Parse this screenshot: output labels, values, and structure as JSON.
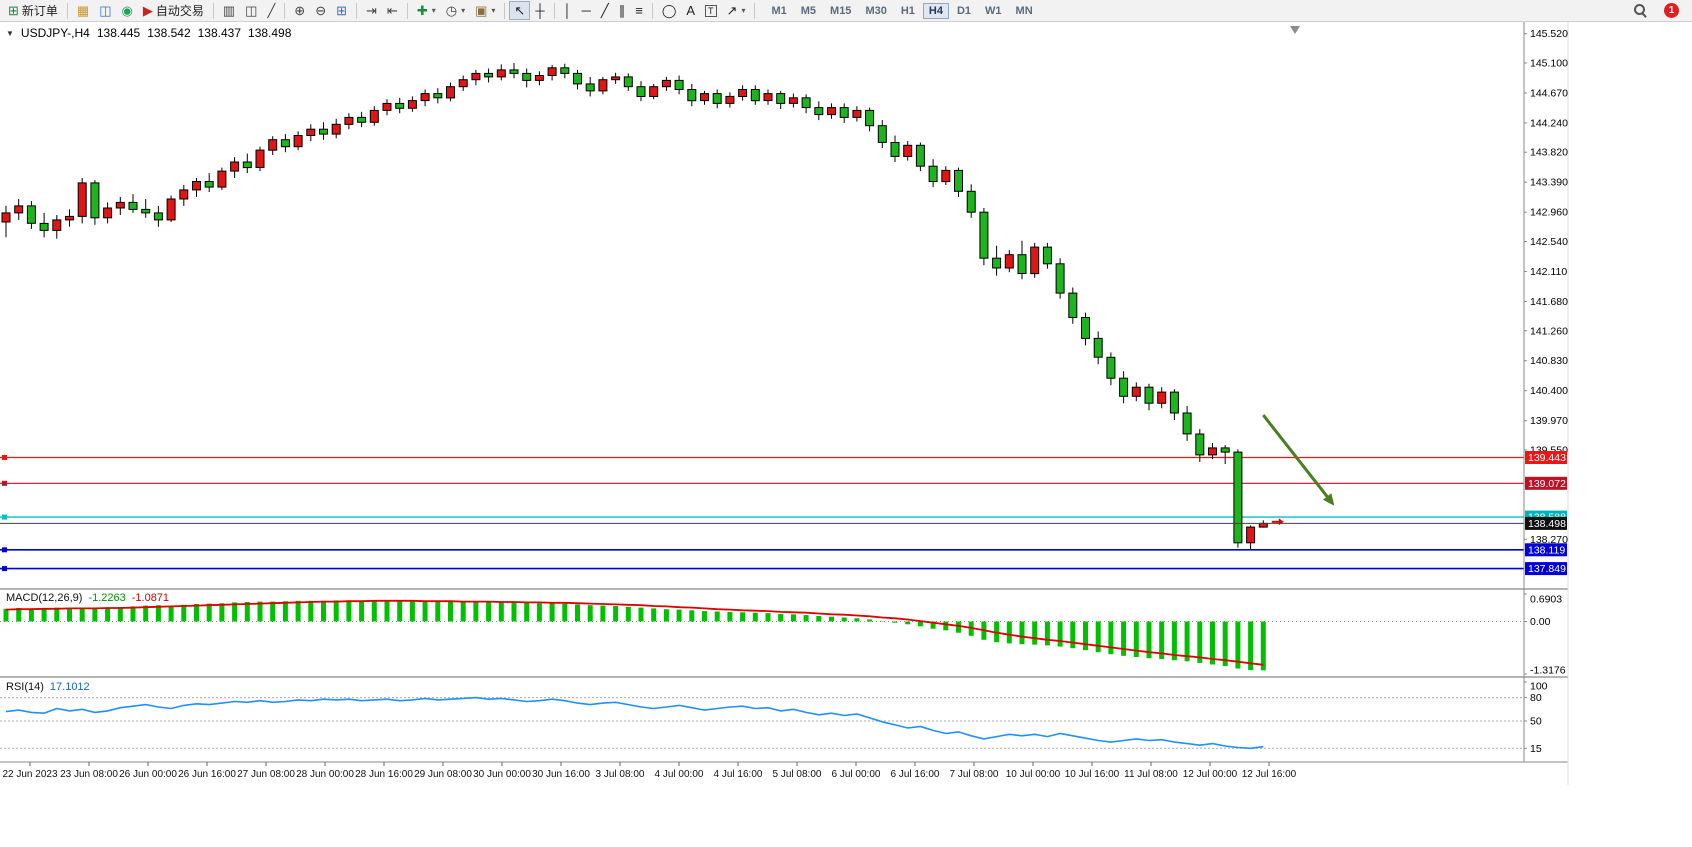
{
  "toolbar": {
    "items": [
      {
        "name": "new-order-button",
        "glyph": "⊞",
        "color": "#1d8a3c",
        "label": "新订单"
      },
      {
        "sep": true
      },
      {
        "name": "new-chart-button",
        "glyph": "▦",
        "color": "#c8962e"
      },
      {
        "name": "profiles-button",
        "glyph": "◫",
        "color": "#3b6fc4"
      },
      {
        "name": "community-button",
        "glyph": "◉",
        "color": "#18a558"
      },
      {
        "name": "autotrading-button",
        "glyph": "▶",
        "color": "#cc2222",
        "label": "自动交易"
      },
      {
        "sep": true
      },
      {
        "name": "bars-chart-button",
        "glyph": "▥",
        "color": "#444"
      },
      {
        "name": "candlestick-chart-button",
        "glyph": "◫",
        "color": "#444"
      },
      {
        "name": "line-chart-button",
        "glyph": "╱",
        "color": "#444"
      },
      {
        "sep": true
      },
      {
        "name": "zoom-in-button",
        "glyph": "⊕",
        "color": "#444"
      },
      {
        "name": "zoom-out-button",
        "glyph": "⊖",
        "color": "#444"
      },
      {
        "name": "tile-windows-button",
        "glyph": "⊞",
        "color": "#3b6fc4"
      },
      {
        "sep": true
      },
      {
        "name": "auto-scroll-button",
        "glyph": "⇥",
        "color": "#444"
      },
      {
        "name": "chart-shift-button",
        "glyph": "⇤",
        "color": "#444"
      },
      {
        "sep": true
      },
      {
        "name": "indicators-button",
        "glyph": "✚",
        "color": "#1d8a3c",
        "caret": true
      },
      {
        "name": "periods-button",
        "glyph": "◷",
        "color": "#444",
        "caret": true
      },
      {
        "name": "templates-button",
        "glyph": "▣",
        "color": "#8a6d3b",
        "caret": true
      },
      {
        "sep": true
      },
      {
        "name": "cursor-button",
        "glyph": "↖",
        "color": "#222",
        "pressed": true
      },
      {
        "name": "crosshair-button",
        "glyph": "┼",
        "color": "#222"
      },
      {
        "sep": true
      },
      {
        "name": "vertical-line-button",
        "glyph": "│",
        "color": "#222"
      },
      {
        "name": "horizontal-line-button",
        "glyph": "─",
        "color": "#222"
      },
      {
        "name": "trendline-button",
        "glyph": "╱",
        "color": "#222"
      },
      {
        "name": "channel-button",
        "glyph": "∥",
        "color": "#222"
      },
      {
        "name": "fibonacci-button",
        "glyph": "≡",
        "color": "#222"
      },
      {
        "sep": true
      },
      {
        "name": "shapes-button",
        "glyph": "◯",
        "color": "#222"
      },
      {
        "name": "text-button",
        "glyph": "A",
        "color": "#222"
      },
      {
        "name": "text-label-button",
        "glyph": "T",
        "color": "#222",
        "boxed": true
      },
      {
        "name": "arrows-button",
        "glyph": "↗",
        "color": "#222",
        "caret": true
      },
      {
        "sep": true
      }
    ],
    "timeframes": [
      "M1",
      "M5",
      "M15",
      "M30",
      "H1",
      "H4",
      "D1",
      "W1",
      "MN"
    ],
    "active_timeframe": "H4",
    "notification_count": "1"
  },
  "header": {
    "collapse_glyph": "▼",
    "title": "USDJPY-,H4",
    "open": "138.445",
    "high": "138.542",
    "low": "138.437",
    "close": "138.498"
  },
  "macd_panel": {
    "label": "MACD(12,26,9)",
    "main_value": "-1.2263",
    "signal_value": "-1.0871"
  },
  "rsi_panel": {
    "label": "RSI(14)",
    "value": "17.1012"
  },
  "chart_data": {
    "type": "candlestick",
    "symbol": "USDJPY-",
    "timeframe": "H4",
    "ylim": [
      137.6,
      145.63
    ],
    "price_ticks": [
      "145.520",
      "145.100",
      "144.670",
      "144.240",
      "143.820",
      "143.390",
      "142.960",
      "142.540",
      "142.110",
      "141.680",
      "141.260",
      "140.830",
      "140.400",
      "139.970",
      "139.550",
      "138.270"
    ],
    "date_labels": [
      "22 Jun 2023",
      "23 Jun 08:00",
      "26 Jun 00:00",
      "26 Jun 16:00",
      "27 Jun 08:00",
      "28 Jun 00:00",
      "28 Jun 16:00",
      "29 Jun 08:00",
      "30 Jun 00:00",
      "30 Jun 16:00",
      "3 Jul 08:00",
      "4 Jul 00:00",
      "4 Jul 16:00",
      "5 Jul 08:00",
      "6 Jul 00:00",
      "6 Jul 16:00",
      "7 Jul 08:00",
      "10 Jul 00:00",
      "10 Jul 16:00",
      "11 Jul 08:00",
      "12 Jul 00:00",
      "12 Jul 16:00"
    ],
    "ohlc": [
      [
        142.82,
        143.05,
        142.6,
        142.95
      ],
      [
        142.95,
        143.15,
        142.85,
        143.05
      ],
      [
        143.05,
        143.12,
        142.72,
        142.8
      ],
      [
        142.8,
        142.95,
        142.6,
        142.7
      ],
      [
        142.7,
        142.92,
        142.58,
        142.85
      ],
      [
        142.85,
        143.0,
        142.75,
        142.9
      ],
      [
        142.9,
        143.45,
        142.8,
        143.38
      ],
      [
        143.38,
        143.42,
        142.78,
        142.88
      ],
      [
        142.88,
        143.1,
        142.8,
        143.02
      ],
      [
        143.02,
        143.18,
        142.92,
        143.1
      ],
      [
        143.1,
        143.22,
        142.95,
        143.0
      ],
      [
        143.0,
        143.15,
        142.88,
        142.95
      ],
      [
        142.95,
        143.05,
        142.75,
        142.85
      ],
      [
        142.85,
        143.2,
        142.82,
        143.15
      ],
      [
        143.15,
        143.35,
        143.05,
        143.28
      ],
      [
        143.28,
        143.45,
        143.18,
        143.4
      ],
      [
        143.4,
        143.52,
        143.25,
        143.32
      ],
      [
        143.32,
        143.6,
        143.28,
        143.55
      ],
      [
        143.55,
        143.75,
        143.45,
        143.68
      ],
      [
        143.68,
        143.8,
        143.52,
        143.6
      ],
      [
        143.6,
        143.9,
        143.55,
        143.85
      ],
      [
        143.85,
        144.05,
        143.78,
        144.0
      ],
      [
        144.0,
        144.08,
        143.82,
        143.9
      ],
      [
        143.9,
        144.12,
        143.85,
        144.06
      ],
      [
        144.06,
        144.22,
        143.98,
        144.15
      ],
      [
        144.15,
        144.25,
        144.0,
        144.08
      ],
      [
        144.08,
        144.3,
        144.02,
        144.22
      ],
      [
        144.22,
        144.38,
        144.15,
        144.32
      ],
      [
        144.32,
        144.4,
        144.18,
        144.25
      ],
      [
        144.25,
        144.48,
        144.2,
        144.42
      ],
      [
        144.42,
        144.58,
        144.35,
        144.52
      ],
      [
        144.52,
        144.6,
        144.38,
        144.45
      ],
      [
        144.45,
        144.62,
        144.4,
        144.56
      ],
      [
        144.56,
        144.72,
        144.48,
        144.66
      ],
      [
        144.66,
        144.74,
        144.52,
        144.6
      ],
      [
        144.6,
        144.82,
        144.55,
        144.76
      ],
      [
        144.76,
        144.92,
        144.7,
        144.86
      ],
      [
        144.86,
        145.0,
        144.78,
        144.95
      ],
      [
        144.95,
        145.02,
        144.82,
        144.9
      ],
      [
        144.9,
        145.08,
        144.85,
        145.0
      ],
      [
        145.0,
        145.1,
        144.88,
        144.95
      ],
      [
        144.95,
        145.02,
        144.75,
        144.85
      ],
      [
        144.85,
        144.98,
        144.78,
        144.92
      ],
      [
        144.92,
        145.07,
        144.85,
        145.03
      ],
      [
        145.03,
        145.09,
        144.88,
        144.95
      ],
      [
        144.95,
        145.0,
        144.72,
        144.8
      ],
      [
        144.8,
        144.9,
        144.62,
        144.7
      ],
      [
        144.7,
        144.9,
        144.65,
        144.86
      ],
      [
        144.86,
        144.96,
        144.8,
        144.9
      ],
      [
        144.9,
        144.95,
        144.7,
        144.76
      ],
      [
        144.76,
        144.84,
        144.55,
        144.62
      ],
      [
        144.62,
        144.8,
        144.58,
        144.76
      ],
      [
        144.76,
        144.9,
        144.7,
        144.85
      ],
      [
        144.85,
        144.92,
        144.65,
        144.72
      ],
      [
        144.72,
        144.8,
        144.48,
        144.56
      ],
      [
        144.56,
        144.7,
        144.5,
        144.66
      ],
      [
        144.66,
        144.72,
        144.45,
        144.52
      ],
      [
        144.52,
        144.68,
        144.46,
        144.62
      ],
      [
        144.62,
        144.78,
        144.56,
        144.72
      ],
      [
        144.72,
        144.78,
        144.5,
        144.56
      ],
      [
        144.56,
        144.72,
        144.5,
        144.66
      ],
      [
        144.66,
        144.7,
        144.44,
        144.52
      ],
      [
        144.52,
        144.66,
        144.46,
        144.6
      ],
      [
        144.6,
        144.65,
        144.38,
        144.46
      ],
      [
        144.46,
        144.55,
        144.28,
        144.36
      ],
      [
        144.36,
        144.52,
        144.3,
        144.46
      ],
      [
        144.46,
        144.52,
        144.24,
        144.32
      ],
      [
        144.32,
        144.48,
        144.26,
        144.42
      ],
      [
        144.42,
        144.46,
        144.12,
        144.2
      ],
      [
        144.2,
        144.28,
        143.88,
        143.96
      ],
      [
        143.96,
        144.06,
        143.68,
        143.76
      ],
      [
        143.76,
        143.98,
        143.7,
        143.92
      ],
      [
        143.92,
        143.96,
        143.55,
        143.62
      ],
      [
        143.62,
        143.72,
        143.32,
        143.4
      ],
      [
        143.4,
        143.62,
        143.35,
        143.56
      ],
      [
        143.56,
        143.6,
        143.18,
        143.26
      ],
      [
        143.26,
        143.36,
        142.88,
        142.96
      ],
      [
        142.96,
        143.02,
        142.2,
        142.3
      ],
      [
        142.3,
        142.48,
        142.05,
        142.16
      ],
      [
        142.16,
        142.42,
        142.1,
        142.35
      ],
      [
        142.35,
        142.55,
        142.0,
        142.08
      ],
      [
        142.08,
        142.52,
        142.02,
        142.46
      ],
      [
        142.46,
        142.52,
        142.15,
        142.22
      ],
      [
        142.22,
        142.3,
        141.72,
        141.8
      ],
      [
        141.8,
        141.88,
        141.36,
        141.45
      ],
      [
        141.45,
        141.52,
        141.05,
        141.15
      ],
      [
        141.15,
        141.25,
        140.78,
        140.88
      ],
      [
        140.88,
        140.95,
        140.48,
        140.58
      ],
      [
        140.58,
        140.68,
        140.22,
        140.32
      ],
      [
        140.32,
        140.52,
        140.25,
        140.45
      ],
      [
        140.45,
        140.5,
        140.12,
        140.22
      ],
      [
        140.22,
        140.45,
        140.15,
        140.38
      ],
      [
        140.38,
        140.42,
        139.98,
        140.08
      ],
      [
        140.08,
        140.18,
        139.68,
        139.78
      ],
      [
        139.78,
        139.85,
        139.38,
        139.48
      ],
      [
        139.48,
        139.65,
        139.42,
        139.58
      ],
      [
        139.58,
        139.62,
        139.35,
        139.52
      ],
      [
        139.52,
        139.56,
        138.15,
        138.22
      ],
      [
        138.22,
        138.47,
        138.13,
        138.445
      ],
      [
        138.445,
        138.542,
        138.437,
        138.498
      ]
    ],
    "hlines": [
      {
        "price": 139.443,
        "label": "139.443",
        "color": "#f01515",
        "badge": "#f01515",
        "width": 1.2
      },
      {
        "price": 139.072,
        "label": "139.072",
        "color": "#c01025",
        "badge": "#c01025",
        "width": 1.2
      },
      {
        "price": 138.588,
        "label": "138.588",
        "color": "#00c0c8",
        "badge": "#00b4bc",
        "width": 1.4
      },
      {
        "price": 138.119,
        "label": "138.119",
        "color": "#0000d8",
        "badge": "#0000d8",
        "width": 1.6
      },
      {
        "price": 137.849,
        "label": "137.849",
        "color": "#0000d8",
        "badge": "#0000d8",
        "width": 1.6
      }
    ],
    "current_price": {
      "price": 138.498,
      "label": "138.498",
      "line_color": "#404040",
      "badge": "#101010"
    },
    "colors": {
      "up": "#e01515",
      "down": "#1db41d",
      "outline": "#000000"
    },
    "indicators": {
      "macd": {
        "name": "MACD(12,26,9)",
        "ylim": [
          -1.3176,
          0.6903
        ],
        "ticks": [
          {
            "v": 0.6903,
            "label": "0.6903"
          },
          {
            "v": 0,
            "label": "0.00"
          },
          {
            "v": -1.3176,
            "label": "-1.3176"
          }
        ],
        "hist_color": "#00c000",
        "signal_color": "#e00000",
        "hist": [
          0.32,
          0.34,
          0.33,
          0.32,
          0.35,
          0.34,
          0.35,
          0.33,
          0.34,
          0.36,
          0.38,
          0.4,
          0.41,
          0.4,
          0.42,
          0.44,
          0.45,
          0.46,
          0.48,
          0.49,
          0.5,
          0.5,
          0.51,
          0.52,
          0.52,
          0.52,
          0.53,
          0.53,
          0.52,
          0.52,
          0.52,
          0.51,
          0.51,
          0.5,
          0.5,
          0.5,
          0.5,
          0.5,
          0.49,
          0.49,
          0.48,
          0.47,
          0.46,
          0.46,
          0.45,
          0.43,
          0.41,
          0.4,
          0.39,
          0.37,
          0.35,
          0.33,
          0.31,
          0.3,
          0.28,
          0.26,
          0.25,
          0.24,
          0.23,
          0.22,
          0.21,
          0.19,
          0.18,
          0.16,
          0.14,
          0.12,
          0.1,
          0.08,
          0.05,
          0.01,
          -0.03,
          -0.07,
          -0.12,
          -0.18,
          -0.22,
          -0.28,
          -0.36,
          -0.46,
          -0.52,
          -0.55,
          -0.57,
          -0.58,
          -0.6,
          -0.63,
          -0.67,
          -0.72,
          -0.77,
          -0.82,
          -0.86,
          -0.89,
          -0.92,
          -0.94,
          -0.97,
          -1.0,
          -1.04,
          -1.08,
          -1.12,
          -1.18,
          -1.22,
          -1.2263
        ],
        "signal": [
          0.3,
          0.31,
          0.31,
          0.32,
          0.32,
          0.33,
          0.33,
          0.33,
          0.34,
          0.34,
          0.35,
          0.36,
          0.37,
          0.38,
          0.39,
          0.4,
          0.41,
          0.42,
          0.43,
          0.44,
          0.45,
          0.46,
          0.47,
          0.48,
          0.49,
          0.5,
          0.5,
          0.51,
          0.51,
          0.52,
          0.52,
          0.52,
          0.52,
          0.51,
          0.51,
          0.51,
          0.5,
          0.5,
          0.5,
          0.49,
          0.49,
          0.48,
          0.48,
          0.47,
          0.47,
          0.46,
          0.45,
          0.44,
          0.43,
          0.42,
          0.41,
          0.39,
          0.38,
          0.36,
          0.35,
          0.33,
          0.31,
          0.3,
          0.28,
          0.27,
          0.26,
          0.24,
          0.23,
          0.22,
          0.2,
          0.18,
          0.17,
          0.15,
          0.13,
          0.1,
          0.08,
          0.05,
          0.01,
          -0.03,
          -0.07,
          -0.11,
          -0.16,
          -0.22,
          -0.28,
          -0.33,
          -0.38,
          -0.42,
          -0.46,
          -0.49,
          -0.53,
          -0.57,
          -0.61,
          -0.65,
          -0.69,
          -0.73,
          -0.77,
          -0.8,
          -0.84,
          -0.87,
          -0.9,
          -0.94,
          -0.97,
          -1.01,
          -1.05,
          -1.0871
        ]
      },
      "rsi": {
        "name": "RSI(14)",
        "ylim": [
          0,
          100
        ],
        "ticks": [
          {
            "v": 100,
            "label": "100"
          },
          {
            "v": 80,
            "label": "80"
          },
          {
            "v": 50,
            "label": "50"
          },
          {
            "v": 15,
            "label": "15"
          }
        ],
        "levels": [
          80,
          50,
          15
        ],
        "color": "#1e90ff",
        "values": [
          62,
          64,
          61,
          60,
          66,
          63,
          65,
          61,
          63,
          67,
          69,
          71,
          68,
          66,
          70,
          72,
          71,
          73,
          75,
          74,
          76,
          74,
          75,
          77,
          76,
          78,
          77,
          78,
          76,
          77,
          78,
          76,
          77,
          79,
          77,
          78,
          79,
          80,
          78,
          79,
          77,
          75,
          76,
          78,
          76,
          73,
          71,
          73,
          74,
          71,
          68,
          66,
          68,
          70,
          67,
          64,
          66,
          68,
          69,
          66,
          67,
          63,
          65,
          61,
          58,
          60,
          57,
          59,
          54,
          49,
          45,
          41,
          43,
          38,
          34,
          36,
          31,
          27,
          30,
          33,
          31,
          33,
          30,
          34,
          31,
          28,
          25,
          23,
          25,
          27,
          25,
          26,
          23,
          21,
          19,
          21,
          18,
          16,
          15,
          17.1
        ]
      }
    },
    "arrow": {
      "from_bar": 99,
      "from_price": 140.05,
      "to_bar": 104.6,
      "to_price": 138.75,
      "color": "#4a7d1f"
    },
    "price_marker": {
      "bar": 100.3,
      "price": 138.52,
      "color": "#dd0000"
    },
    "shift_marker_bar": 101.5
  }
}
